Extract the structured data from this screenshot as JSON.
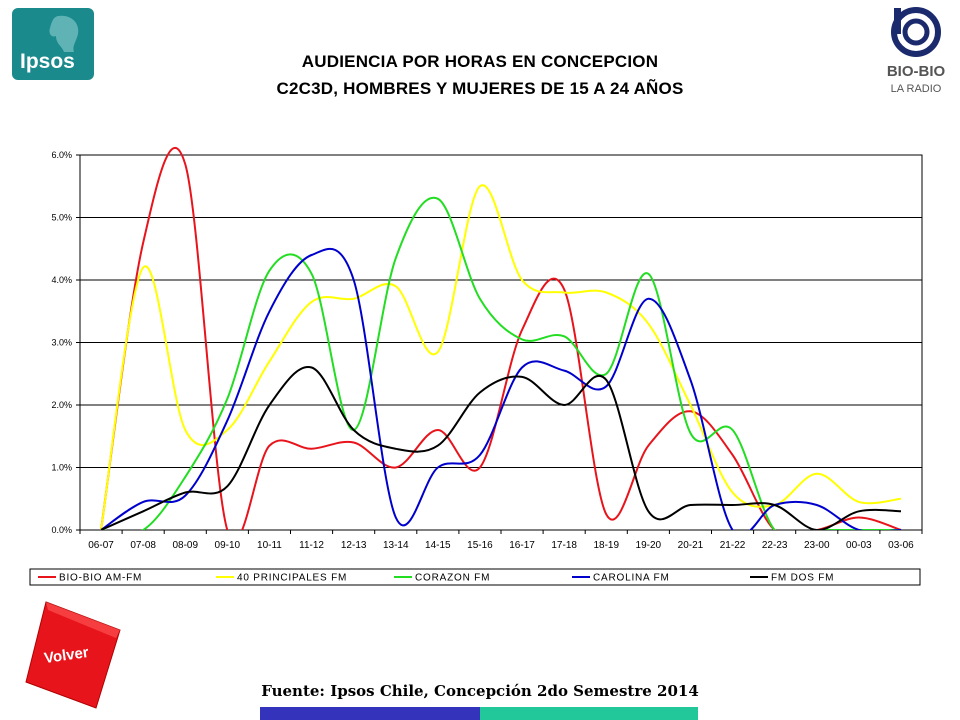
{
  "logos": {
    "left_text": "Ipsos",
    "right_text": "BIO-BIO",
    "right_subtext": "LA RADIO"
  },
  "colors": {
    "ipsos_bg": "#1b8a8c",
    "volver_red": "#e8141c",
    "bar_blue": "#3333bb",
    "bar_teal": "#22c79a"
  },
  "chart_data": {
    "type": "line",
    "title": "AUDIENCIA POR HORAS EN CONCEPCION",
    "subtitle": "C2C3D, HOMBRES Y MUJERES DE 15 A 24 AÑOS",
    "xlabel": "",
    "ylabel": "",
    "ylim": [
      0,
      6
    ],
    "yticks": [
      "0.0%",
      "1.0%",
      "2.0%",
      "3.0%",
      "4.0%",
      "5.0%",
      "6.0%"
    ],
    "grid": true,
    "legend_position": "bottom",
    "smooth": true,
    "categories": [
      "06-07",
      "07-08",
      "08-09",
      "09-10",
      "10-11",
      "11-12",
      "12-13",
      "13-14",
      "14-15",
      "15-16",
      "16-17",
      "17-18",
      "18-19",
      "19-20",
      "20-21",
      "21-22",
      "22-23",
      "23-00",
      "00-03",
      "03-06"
    ],
    "series": [
      {
        "name": "BIO-BIO AM-FM",
        "color": "#e8141c",
        "values": [
          0.0,
          4.6,
          5.85,
          0.0,
          1.35,
          1.3,
          1.4,
          1.0,
          1.6,
          1.0,
          3.2,
          3.85,
          0.25,
          1.35,
          1.9,
          1.2,
          0.0,
          0.0,
          0.2,
          0.0
        ]
      },
      {
        "name": "40 PRINCIPALES FM",
        "color": "#ffff00",
        "values": [
          0.0,
          4.2,
          1.6,
          1.6,
          2.7,
          3.65,
          3.7,
          3.9,
          2.85,
          5.5,
          4.0,
          3.8,
          3.8,
          3.3,
          2.0,
          0.6,
          0.4,
          0.9,
          0.45,
          0.5
        ]
      },
      {
        "name": "CORAZON FM",
        "color": "#22dd22",
        "values": [
          0.0,
          0.0,
          0.85,
          2.1,
          4.15,
          4.1,
          1.6,
          4.35,
          5.3,
          3.7,
          3.05,
          3.1,
          2.5,
          4.1,
          1.55,
          1.6,
          0.0,
          0.0,
          0.0,
          0.0
        ]
      },
      {
        "name": "CAROLINA FM",
        "color": "#0000cc",
        "values": [
          0.0,
          0.45,
          0.55,
          1.75,
          3.5,
          4.4,
          4.0,
          0.2,
          1.0,
          1.2,
          2.6,
          2.55,
          2.3,
          3.7,
          2.4,
          0.0,
          0.4,
          0.4,
          0.0,
          0.0
        ]
      },
      {
        "name": "FM DOS FM",
        "color": "#000000",
        "values": [
          0.0,
          0.3,
          0.6,
          0.7,
          2.0,
          2.6,
          1.6,
          1.3,
          1.35,
          2.2,
          2.45,
          2.0,
          2.4,
          0.3,
          0.4,
          0.4,
          0.4,
          0.0,
          0.3,
          0.3
        ]
      }
    ]
  },
  "footer": {
    "volver_label": "Volver",
    "source": "Fuente: Ipsos Chile, Concepción 2do Semestre 2014"
  }
}
